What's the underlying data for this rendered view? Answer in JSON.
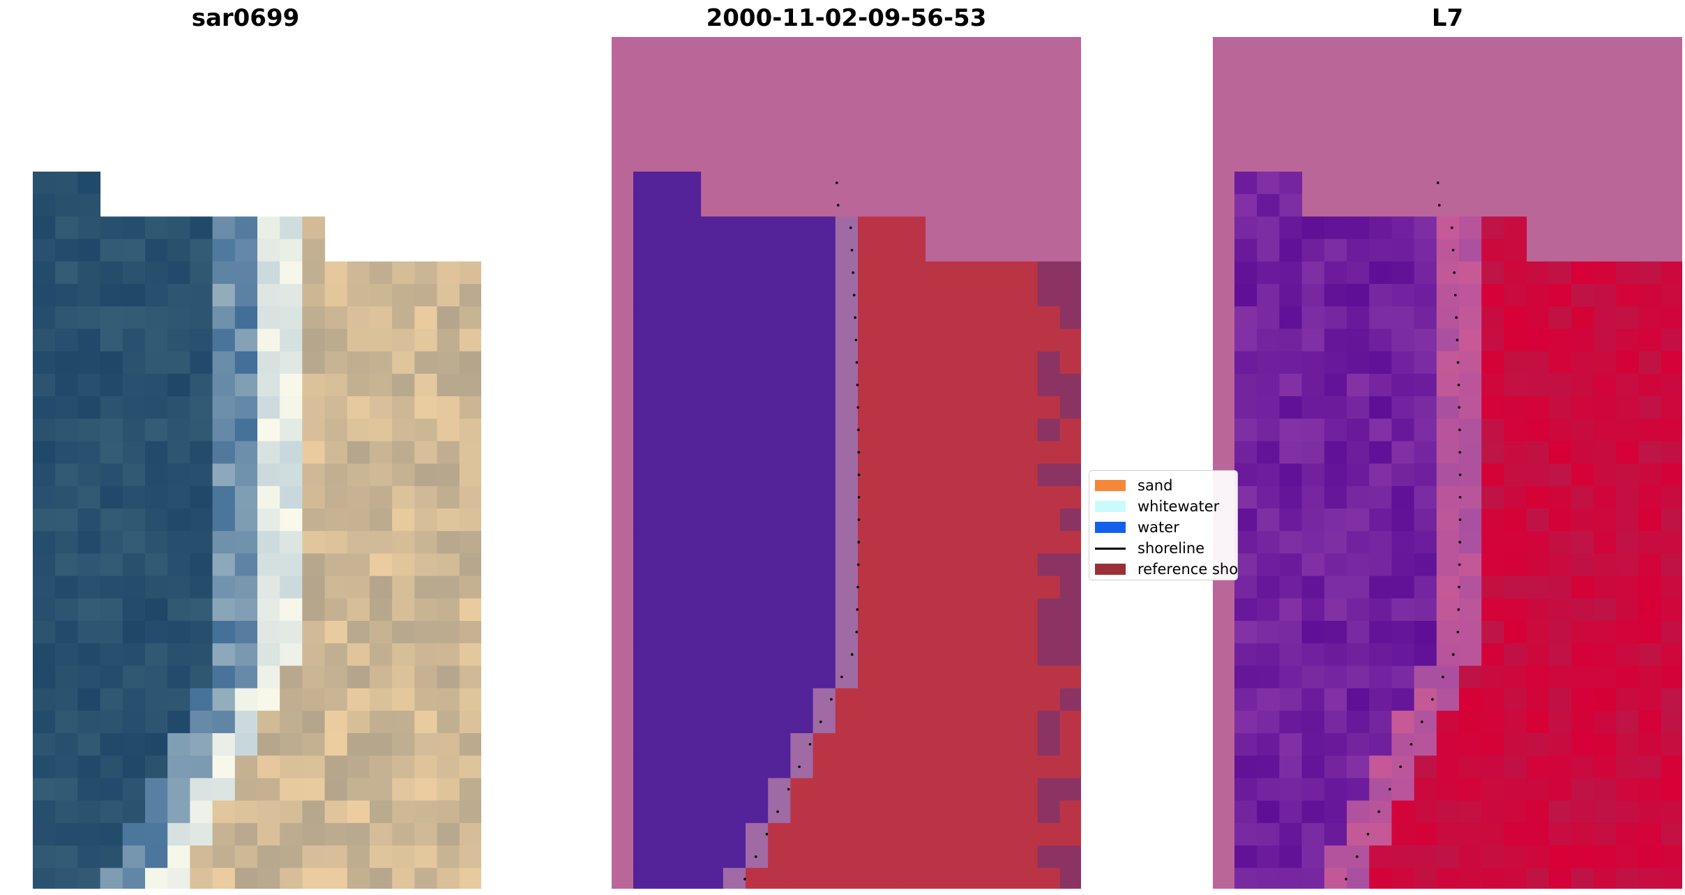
{
  "panels": [
    {
      "title": "sar0699"
    },
    {
      "title": "2000-11-02-09-56-53"
    },
    {
      "title": "L7"
    }
  ],
  "legend": {
    "items": [
      {
        "label": "sand",
        "color": "#f58739"
      },
      {
        "label": "whitewater",
        "color": "#c9fbfb"
      },
      {
        "label": "water",
        "color": "#1360ec"
      },
      {
        "label": "shoreline",
        "color": "#000000"
      },
      {
        "label": "reference shoreline",
        "color": "#9a2f36"
      }
    ]
  },
  "colors": {
    "background": "#bb6699",
    "water_class": "#542299",
    "whitewater_class": "#a06aa5",
    "sand_class": "#bb3446",
    "sand_dark": "#8b3463",
    "shoreline": "#000000"
  }
}
